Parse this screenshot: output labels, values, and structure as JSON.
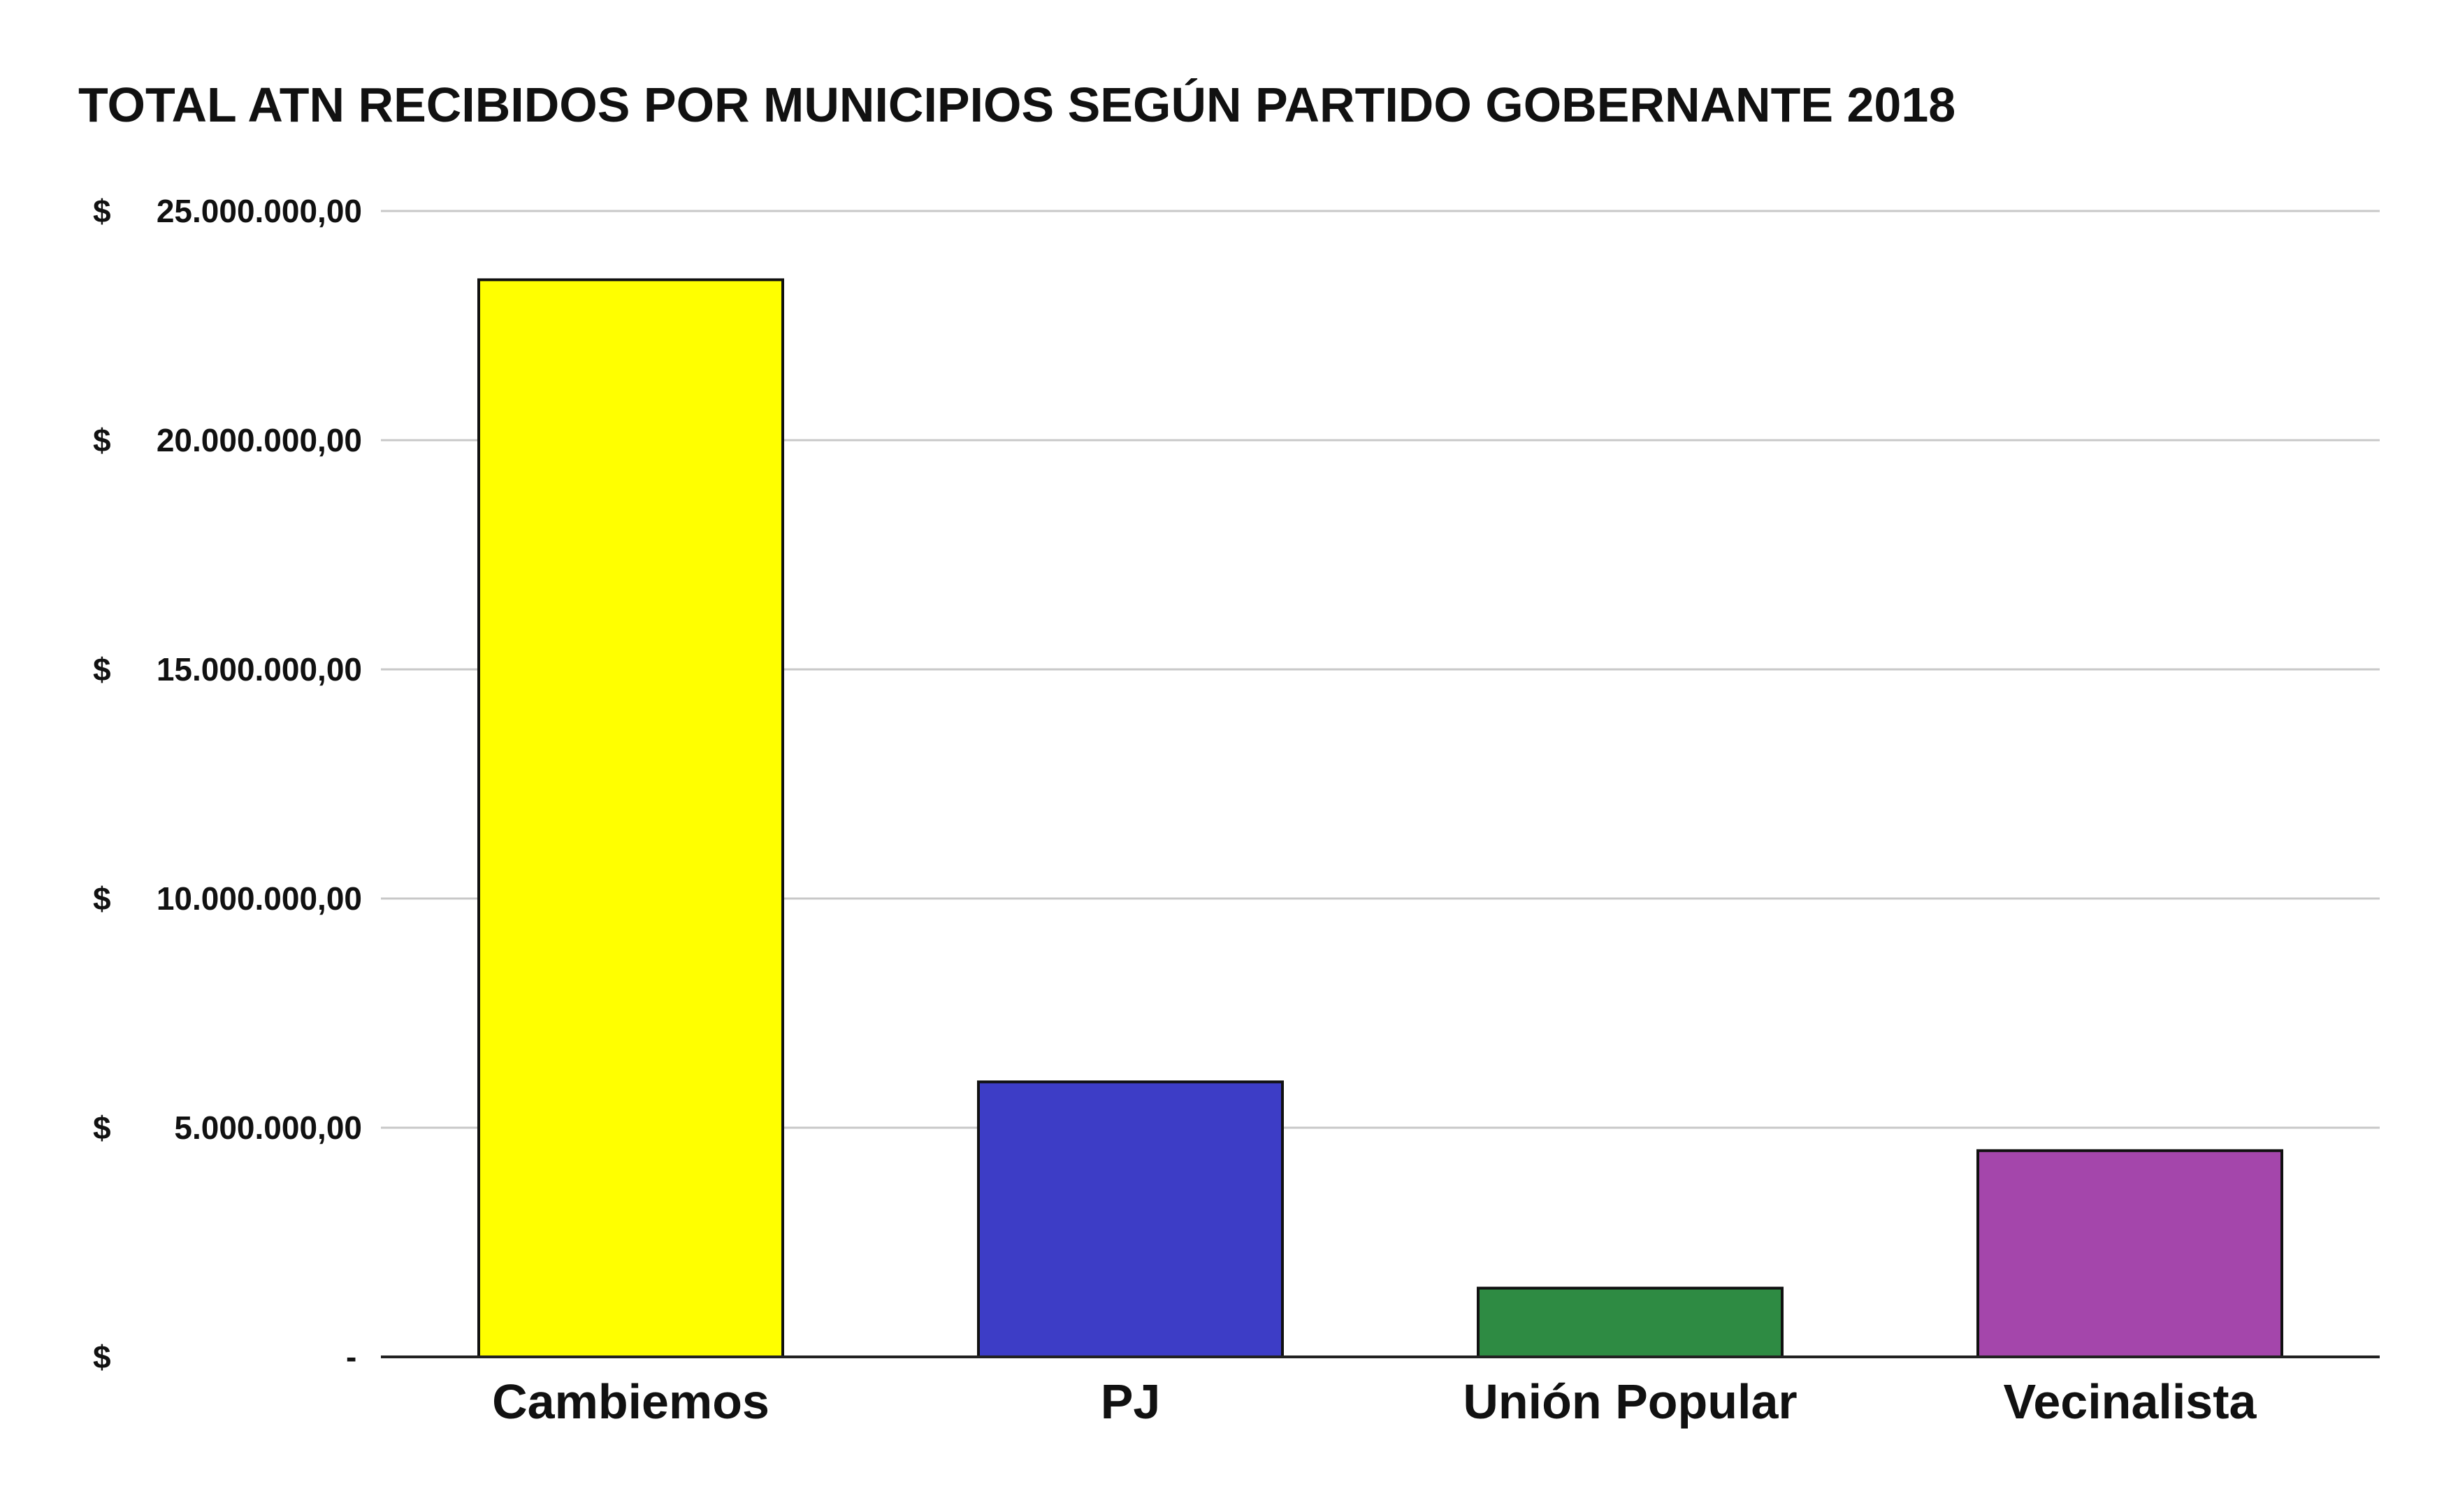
{
  "chart_data": {
    "type": "bar",
    "title": "TOTAL ATN RECIBIDOS POR MUNICIPIOS SEGÚN PARTIDO GOBERNANTE 2018",
    "xlabel": "",
    "ylabel": "",
    "categories": [
      "Cambiemos",
      "PJ",
      "Unión Popular",
      "Vecinalista"
    ],
    "values": [
      23500000,
      6000000,
      1500000,
      4500000
    ],
    "colors": [
      "#ffff00",
      "#3d3dc6",
      "#2e8b43",
      "#a446ab"
    ],
    "ylim": [
      0,
      25000000
    ],
    "yticks": [
      {
        "value": 0,
        "label": "-"
      },
      {
        "value": 5000000,
        "label": "5.000.000,00"
      },
      {
        "value": 10000000,
        "label": "10.000.000,00"
      },
      {
        "value": 15000000,
        "label": "15.000.000,00"
      },
      {
        "value": 20000000,
        "label": "20.000.000,00"
      },
      {
        "value": 25000000,
        "label": "25.000.000,00"
      }
    ],
    "currency_symbol": "$",
    "grid": true,
    "legend": "none"
  }
}
